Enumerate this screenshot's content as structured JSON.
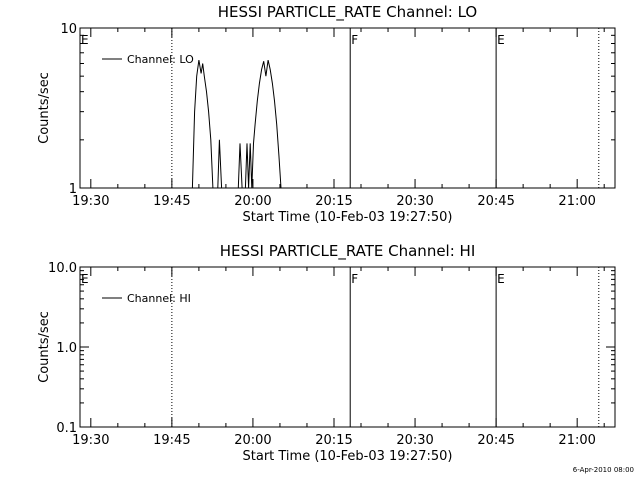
{
  "chart_data": [
    {
      "type": "line",
      "title": "HESSI PARTICLE_RATE Channel: LO",
      "xlabel": "Start Time (10-Feb-03 19:27:50)",
      "ylabel": "Counts/sec",
      "yscale": "log",
      "xlim": [
        "19:28",
        "21:07"
      ],
      "ylim": [
        1,
        10
      ],
      "x_ticks": [
        "19:30",
        "19:45",
        "20:00",
        "20:15",
        "20:30",
        "20:45",
        "21:00"
      ],
      "y_ticks": [
        "1",
        "10"
      ],
      "legend": {
        "position": "top-left",
        "entries": [
          "Channel: LO"
        ]
      },
      "markers": [
        {
          "label": "E",
          "time": "19:28",
          "style": "solid"
        },
        {
          "label": "",
          "time": "19:45",
          "style": "dotted"
        },
        {
          "label": "F",
          "time": "20:18",
          "style": "solid"
        },
        {
          "label": "E",
          "time": "20:45",
          "style": "solid"
        },
        {
          "label": "",
          "time": "21:04",
          "style": "dotted"
        }
      ],
      "series": [
        {
          "name": "Channel: LO",
          "segments": [
            [
              [
                "19:48.8",
                1
              ],
              [
                "19:49.2",
                3
              ],
              [
                "19:49.6",
                5
              ],
              [
                "19:50",
                6.3
              ],
              [
                "19:50.4",
                5.2
              ],
              [
                "19:50.7",
                6
              ],
              [
                "19:51",
                5
              ],
              [
                "19:51.4",
                4
              ],
              [
                "19:51.8",
                3
              ],
              [
                "19:52.2",
                2
              ],
              [
                "19:52.6",
                1
              ]
            ],
            [
              [
                "19:53.5",
                1
              ],
              [
                "19:53.8",
                2
              ],
              [
                "19:54.2",
                1
              ]
            ],
            [
              [
                "19:57.3",
                1
              ],
              [
                "19:57.6",
                1.9
              ],
              [
                "19:58",
                1
              ]
            ],
            [
              [
                "19:58.6",
                1
              ],
              [
                "19:58.9",
                1.9
              ],
              [
                "19:59.2",
                1
              ],
              [
                "19:59.5",
                1.9
              ],
              [
                "19:59.8",
                1
              ],
              [
                "20:00.1",
                1.9
              ],
              [
                "20:00.4",
                2.5
              ],
              [
                "20:00.8",
                3.5
              ],
              [
                "20:01.2",
                4.5
              ],
              [
                "20:01.6",
                5.5
              ],
              [
                "20:02",
                6.2
              ],
              [
                "20:02.4",
                5
              ],
              [
                "20:02.8",
                6.3
              ],
              [
                "20:03.2",
                5.5
              ],
              [
                "20:03.6",
                4.5
              ],
              [
                "20:04",
                3.5
              ],
              [
                "20:04.4",
                2.5
              ],
              [
                "20:04.8",
                1.6
              ],
              [
                "20:05.2",
                1
              ]
            ]
          ]
        }
      ]
    },
    {
      "type": "line",
      "title": "HESSI PARTICLE_RATE Channel: HI",
      "xlabel": "Start Time (10-Feb-03 19:27:50)",
      "ylabel": "Counts/sec",
      "yscale": "log",
      "xlim": [
        "19:28",
        "21:07"
      ],
      "ylim": [
        0.1,
        10
      ],
      "x_ticks": [
        "19:30",
        "19:45",
        "20:00",
        "20:15",
        "20:30",
        "20:45",
        "21:00"
      ],
      "y_ticks": [
        "0.1",
        "1.0",
        "10.0"
      ],
      "legend": {
        "position": "top-left",
        "entries": [
          "Channel: HI"
        ]
      },
      "markers": [
        {
          "label": "E",
          "time": "19:28",
          "style": "solid"
        },
        {
          "label": "",
          "time": "19:45",
          "style": "dotted"
        },
        {
          "label": "F",
          "time": "20:18",
          "style": "solid"
        },
        {
          "label": "E",
          "time": "20:45",
          "style": "solid"
        },
        {
          "label": "",
          "time": "21:04",
          "style": "dotted"
        }
      ],
      "series": [
        {
          "name": "Channel: HI",
          "segments": []
        }
      ]
    }
  ],
  "footer_timestamp": "6-Apr-2010 08:00"
}
